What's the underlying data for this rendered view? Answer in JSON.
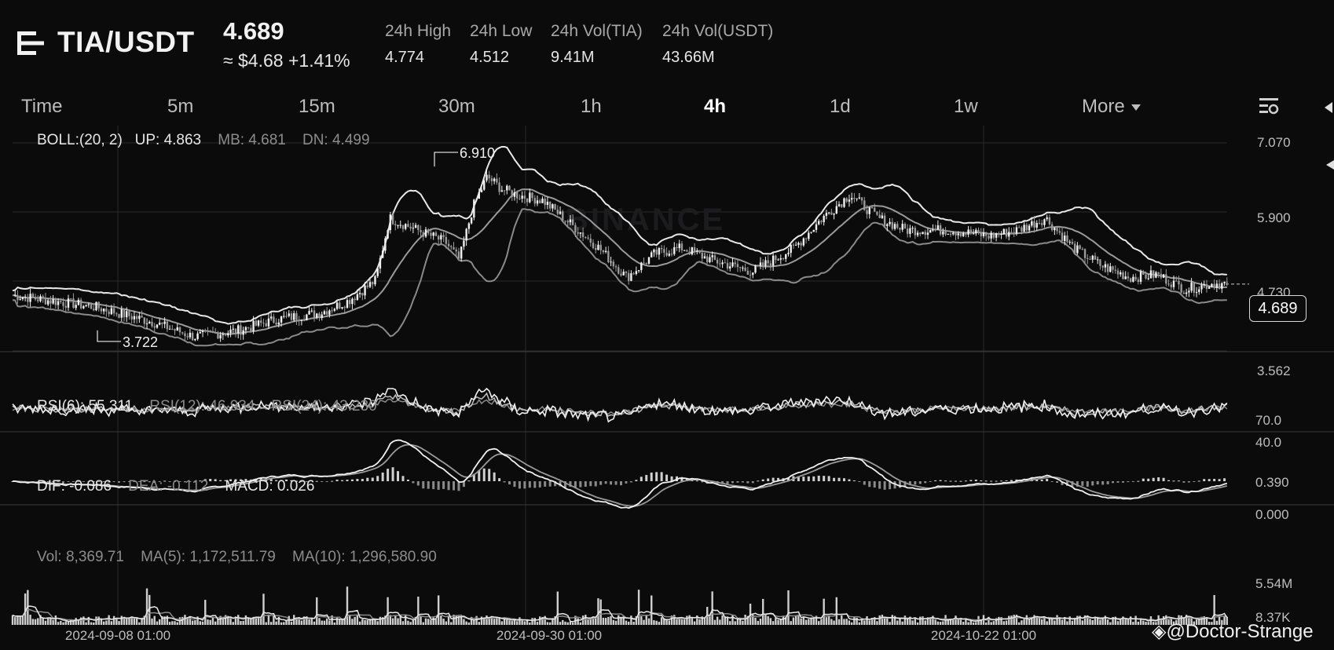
{
  "header": {
    "pair": "TIA/USDT",
    "price": "4.689",
    "approx": "≈ $4.68",
    "change": "+1.41%",
    "stats": [
      {
        "label": "24h High",
        "value": "4.774"
      },
      {
        "label": "24h Low",
        "value": "4.512"
      },
      {
        "label": "24h Vol(TIA)",
        "value": "9.41M"
      },
      {
        "label": "24h Vol(USDT)",
        "value": "43.66M"
      }
    ]
  },
  "tabs": [
    {
      "label": "Time"
    },
    {
      "label": "5m"
    },
    {
      "label": "15m"
    },
    {
      "label": "30m"
    },
    {
      "label": "1h"
    },
    {
      "label": "4h"
    },
    {
      "label": "1d"
    },
    {
      "label": "1w"
    },
    {
      "label": "More"
    }
  ],
  "active_tab": "4h",
  "indicators": {
    "boll": {
      "name": "BOLL:(20, 2)",
      "up": "UP: 4.863",
      "mb": "MB: 4.681",
      "dn": "DN: 4.499"
    },
    "rsi": {
      "r6": "RSI(6): 55.311",
      "r12": "RSI(12): 46.934",
      "r24": "RSI(24): 43.230"
    },
    "macd": {
      "dif": "DIF: -0.086",
      "dea": "DEA: -0.112",
      "macd": "MACD: 0.026"
    },
    "vol": {
      "vol": "Vol: 8,369.71",
      "ma5": "MA(5): 1,172,511.79",
      "ma10": "MA(10): 1,296,580.90"
    }
  },
  "current_price_badge": "4.689",
  "watermark": "BINANCE",
  "credit": "@Doctor-Strange",
  "chart_data": {
    "type": "candlestick",
    "panes": [
      {
        "name": "price",
        "y_ticks": [
          "7.070",
          "5.900",
          "4.730",
          "3.562"
        ],
        "y_range": [
          3.562,
          7.07
        ],
        "annotations": [
          {
            "label": "6.910",
            "value": 6.91,
            "note": "period high"
          },
          {
            "label": "3.722",
            "value": 3.722,
            "note": "period low"
          }
        ],
        "last_value": 4.689,
        "close_path": [
          [
            0,
            4.5
          ],
          [
            6,
            4.3
          ],
          [
            10,
            4.05
          ],
          [
            13,
            3.8
          ],
          [
            16,
            3.9
          ],
          [
            19,
            4.1
          ],
          [
            22,
            4.2
          ],
          [
            24,
            4.4
          ],
          [
            26,
            4.75
          ],
          [
            27,
            5.8
          ],
          [
            29,
            5.6
          ],
          [
            31,
            5.4
          ],
          [
            32,
            5.1
          ],
          [
            33,
            6.0
          ],
          [
            34,
            6.5
          ],
          [
            35,
            6.3
          ],
          [
            36,
            6.2
          ],
          [
            38,
            6.1
          ],
          [
            40,
            5.7
          ],
          [
            42,
            5.3
          ],
          [
            44,
            4.8
          ],
          [
            46,
            5.2
          ],
          [
            48,
            5.3
          ],
          [
            50,
            5.1
          ],
          [
            53,
            4.9
          ],
          [
            56,
            5.3
          ],
          [
            58,
            5.8
          ],
          [
            60,
            6.2
          ],
          [
            62,
            5.8
          ],
          [
            64,
            5.6
          ],
          [
            67,
            5.6
          ],
          [
            70,
            5.5
          ],
          [
            72,
            5.6
          ],
          [
            74,
            5.8
          ],
          [
            76,
            5.3
          ],
          [
            78,
            5.0
          ],
          [
            80,
            4.8
          ],
          [
            82,
            4.85
          ],
          [
            84,
            4.6
          ],
          [
            86,
            4.7
          ],
          [
            87,
            4.689
          ]
        ]
      },
      {
        "name": "rsi",
        "y_ticks": [
          "70.0",
          "40.0"
        ]
      },
      {
        "name": "macd",
        "y_ticks": [
          "0.390",
          "0.000"
        ]
      },
      {
        "name": "volume",
        "y_ticks": [
          "5.54M",
          "8.37K"
        ]
      }
    ],
    "x_ticks": [
      "2024-09-08 01:00",
      "2024-09-30 01:00",
      "2024-10-22 01:00"
    ],
    "line_color": "#e8e8e8",
    "secondary_color": "#8a8a8a",
    "background": "#0b0b0c"
  }
}
